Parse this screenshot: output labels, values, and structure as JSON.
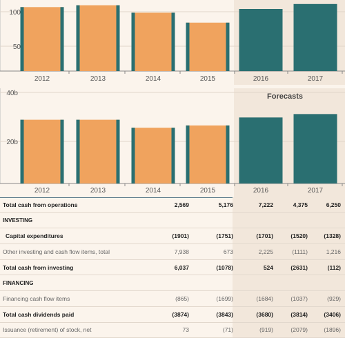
{
  "chart_data": [
    {
      "type": "bar",
      "categories": [
        "2012",
        "2013",
        "2014",
        "2015",
        "2016",
        "2017"
      ],
      "values": [
        103,
        106,
        94,
        78,
        100,
        108
      ],
      "ylim": [
        0,
        110
      ],
      "yticks": [
        "50",
        "100"
      ],
      "forecast_from_index": 4,
      "colors": {
        "actual": "#f0a35e",
        "forecast": "#2a6f71",
        "accent": "#2a6f71"
      }
    },
    {
      "type": "bar",
      "categories": [
        "2012",
        "2013",
        "2014",
        "2015",
        "2016",
        "2017"
      ],
      "values": [
        28,
        28,
        24.5,
        25.5,
        29,
        30.5
      ],
      "ylim": [
        0,
        40
      ],
      "yticks": [
        "20b",
        "40b"
      ],
      "forecast_from_index": 4,
      "forecast_label": "Forecasts",
      "colors": {
        "actual": "#f0a35e",
        "forecast": "#2a6f71",
        "accent": "#2a6f71"
      }
    }
  ],
  "table": {
    "rows": [
      {
        "label": "Total cash from operations",
        "style": "total",
        "values": [
          "2,569",
          "5,176",
          "7,222",
          "4,375",
          "6,250"
        ]
      },
      {
        "label": "INVESTING",
        "style": "section",
        "values": []
      },
      {
        "label": "Capital expenditures",
        "style": "total indent",
        "values": [
          "(1901)",
          "(1751)",
          "(1701)",
          "(1520)",
          "(1328)"
        ]
      },
      {
        "label": "Other investing and cash flow items, total",
        "style": "light",
        "values": [
          "7,938",
          "673",
          "2,225",
          "(1111)",
          "1,216"
        ]
      },
      {
        "label": "Total cash from investing",
        "style": "total",
        "values": [
          "6,037",
          "(1078)",
          "524",
          "(2631)",
          "(112)"
        ]
      },
      {
        "label": "FINANCING",
        "style": "section",
        "values": []
      },
      {
        "label": "Financing cash flow items",
        "style": "light",
        "values": [
          "(865)",
          "(1699)",
          "(1684)",
          "(1037)",
          "(929)"
        ]
      },
      {
        "label": "Total cash dividends paid",
        "style": "total",
        "values": [
          "(3874)",
          "(3843)",
          "(3680)",
          "(3814)",
          "(3406)"
        ]
      },
      {
        "label": "Issuance (retirement) of stock, net",
        "style": "light",
        "values": [
          "73",
          "(71)",
          "(919)",
          "(2079)",
          "(1896)"
        ]
      }
    ]
  }
}
